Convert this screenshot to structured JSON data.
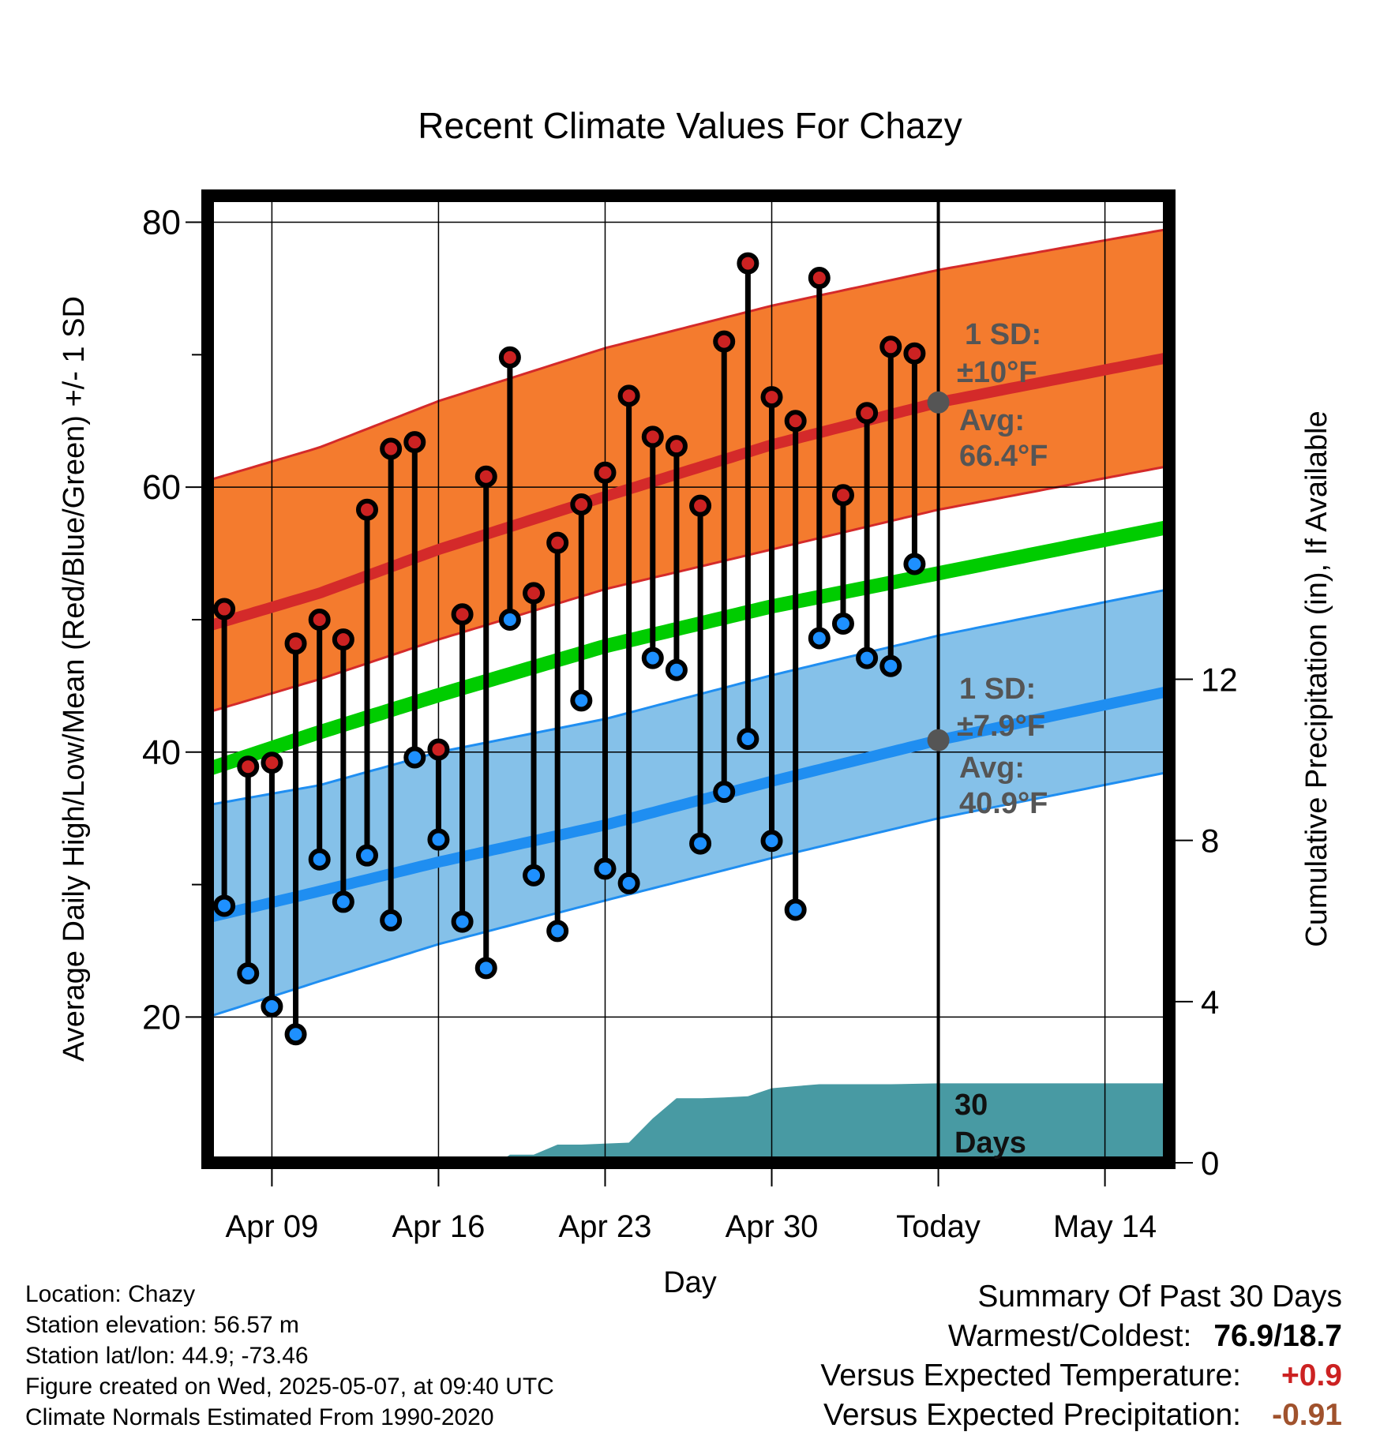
{
  "title": "Recent Climate Values For Chazy",
  "colors": {
    "high_band": "#f47b2e",
    "high_band_edge": "#d42a2a",
    "high_mean": "#d42a2a",
    "low_band": "#85c1e9",
    "low_band_edge": "#1f8ef1",
    "low_mean": "#1f8ef1",
    "mean_line": "#00cc00",
    "precip_area": "#489aa3",
    "high_point": "#cc2222",
    "low_point": "#1e90ff",
    "avg_marker": "#555555",
    "warm_anomaly": "#cc2222",
    "precip_anomaly": "#a0522d"
  },
  "annotations": {
    "high_sd_label": "1 SD:",
    "high_sd_value": "±10°F",
    "high_avg_label": "Avg:",
    "high_avg_value": "66.4°F",
    "low_sd_label": "1 SD:",
    "low_sd_value": "±7.9°F",
    "low_avg_label": "Avg:",
    "low_avg_value": "40.9°F",
    "precip_label_1": "30",
    "precip_label_2": "Days"
  },
  "info": {
    "location": "Location: Chazy",
    "elevation": "Station elevation: 56.57 m",
    "latlon": "Station lat/lon: 44.9; -73.46",
    "created": "Figure created on Wed, 2025-05-07, at 09:40 UTC",
    "normals": "Climate Normals Estimated From 1990-2020"
  },
  "summary": {
    "heading": "Summary Of Past 30 Days",
    "warm_cold_label": "Warmest/Coldest:",
    "warm_cold_value": "76.9/18.7",
    "temp_label": "Versus Expected Temperature:",
    "temp_value": "+0.9",
    "precip_label": "Versus Expected Precipitation:",
    "precip_value": "-0.91"
  },
  "chart_data": {
    "type": "line",
    "title": "Recent Climate Values For Chazy",
    "xlabel": "Day",
    "ylabel": "Average Daily High/Low/Mean (Red/Blue/Green) +/- 1 SD",
    "y2label": "Cumulative Precipitation (in), If Available",
    "x_tick_labels": [
      "Apr 09",
      "Apr 16",
      "Apr 23",
      "Apr 30",
      "Today",
      "May 14"
    ],
    "x_tick_days": [
      9,
      16,
      23,
      30,
      37,
      44
    ],
    "xlim_days": [
      6.3,
      46.7
    ],
    "today_day": 37,
    "ylim": [
      9,
      82
    ],
    "yticks": [
      20,
      40,
      60,
      80
    ],
    "yminor": [
      30,
      50,
      70
    ],
    "y2lim": [
      0,
      24
    ],
    "y2ticks": [
      0,
      4,
      8,
      12
    ],
    "normals": {
      "days": [
        6.3,
        11,
        16,
        23,
        30,
        37,
        46.7
      ],
      "high_mean": [
        49.5,
        52.0,
        55.3,
        59.3,
        63.2,
        66.4,
        69.8
      ],
      "high_upper": [
        60.5,
        63.0,
        66.5,
        70.5,
        73.7,
        76.4,
        79.5
      ],
      "high_lower": [
        43.0,
        45.5,
        48.5,
        52.3,
        55.3,
        58.3,
        61.6
      ],
      "mean": [
        38.7,
        41.5,
        44.3,
        48.0,
        51.0,
        53.5,
        57.0
      ],
      "low_mean": [
        27.5,
        29.5,
        31.7,
        34.5,
        37.8,
        40.9,
        44.6
      ],
      "low_upper": [
        36.0,
        37.5,
        40.0,
        42.5,
        45.8,
        48.8,
        52.3
      ],
      "low_lower": [
        20.0,
        22.7,
        25.5,
        28.8,
        32.0,
        35.0,
        38.5
      ]
    },
    "series": [
      {
        "name": "Daily High",
        "days": [
          7,
          8,
          9,
          10,
          11,
          12,
          13,
          14,
          15,
          16,
          17,
          18,
          19,
          20,
          21,
          22,
          23,
          24,
          25,
          26,
          27,
          28,
          29,
          30,
          31,
          32,
          33,
          34,
          35,
          36
        ],
        "values": [
          50.8,
          38.9,
          39.2,
          48.2,
          50.0,
          48.5,
          58.3,
          62.9,
          63.4,
          40.2,
          50.4,
          60.8,
          69.8,
          52.0,
          55.8,
          58.7,
          61.1,
          66.9,
          63.8,
          63.1,
          58.6,
          71.0,
          76.9,
          66.8,
          65.0,
          75.8,
          59.4,
          65.6,
          70.6,
          70.1
        ]
      },
      {
        "name": "Daily Low",
        "days": [
          7,
          8,
          9,
          10,
          11,
          12,
          13,
          14,
          15,
          16,
          17,
          18,
          19,
          20,
          21,
          22,
          23,
          24,
          25,
          26,
          27,
          28,
          29,
          30,
          31,
          32,
          33,
          34,
          35,
          36
        ],
        "values": [
          28.4,
          23.3,
          20.8,
          18.7,
          31.9,
          28.7,
          32.2,
          27.3,
          39.6,
          33.4,
          27.2,
          23.7,
          50.0,
          30.7,
          26.5,
          43.9,
          31.2,
          30.1,
          47.1,
          46.2,
          33.1,
          37.0,
          41.0,
          33.3,
          28.1,
          48.6,
          49.7,
          47.1,
          46.5,
          54.2
        ]
      },
      {
        "name": "Cumulative Precipitation",
        "days": [
          6.3,
          18.5,
          19,
          20,
          21,
          22,
          24,
          25,
          26,
          27,
          28,
          29,
          30,
          31,
          32,
          33,
          34,
          35,
          37,
          46.7
        ],
        "values": [
          0,
          0,
          0.2,
          0.2,
          0.45,
          0.45,
          0.5,
          1.1,
          1.6,
          1.6,
          1.62,
          1.65,
          1.85,
          1.9,
          1.95,
          1.95,
          1.95,
          1.95,
          1.97,
          1.97
        ]
      }
    ]
  }
}
